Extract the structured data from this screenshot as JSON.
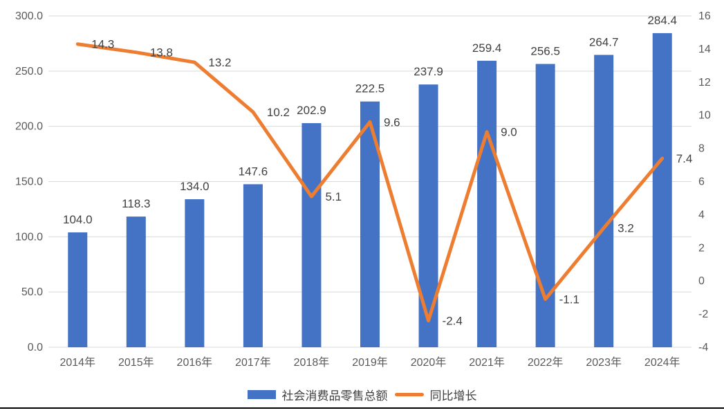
{
  "chart_data": {
    "type": "combo-bar-line",
    "title": "",
    "categories": [
      "2014年",
      "2015年",
      "2016年",
      "2017年",
      "2018年",
      "2019年",
      "2020年",
      "2021年",
      "2022年",
      "2023年",
      "2024年"
    ],
    "series": [
      {
        "name": "社会消费品零售总额",
        "type": "bar",
        "y_axis": "left",
        "color": "#4472C4",
        "values": [
          104.0,
          118.3,
          134.0,
          147.6,
          202.9,
          222.5,
          237.9,
          259.4,
          256.5,
          264.7,
          284.4
        ],
        "data_labels": [
          "104.0",
          "118.3",
          "134.0",
          "147.6",
          "202.9",
          "222.5",
          "237.9",
          "259.4",
          "256.5",
          "264.7",
          "284.4"
        ]
      },
      {
        "name": "同比增长",
        "type": "line",
        "y_axis": "right",
        "color": "#ED7D31",
        "values": [
          14.3,
          13.8,
          13.2,
          10.2,
          5.1,
          9.6,
          -2.4,
          9.0,
          -1.1,
          3.2,
          7.4
        ],
        "data_labels": [
          "14.3",
          "13.8",
          "13.2",
          "10.2",
          "5.1",
          "9.6",
          "-2.4",
          "9.0",
          "-1.1",
          "3.2",
          "7.4"
        ]
      }
    ],
    "left_axis": {
      "min": 0,
      "max": 300,
      "step": 50,
      "tick_labels": [
        "0.0",
        "50.0",
        "100.0",
        "150.0",
        "200.0",
        "250.0",
        "300.0"
      ]
    },
    "right_axis": {
      "min": -4,
      "max": 16,
      "step": 2,
      "tick_labels": [
        "-4",
        "-2",
        "0",
        "2",
        "4",
        "6",
        "8",
        "10",
        "12",
        "14",
        "16"
      ]
    },
    "grid": true,
    "legend_position": "bottom",
    "colors": {
      "grid": "#D9D9D9",
      "axis_line": "#D9D9D9",
      "axis_text": "#595959",
      "label_text": "#404040",
      "background": "#FFFFFF",
      "bottom_border": "#000000"
    }
  }
}
